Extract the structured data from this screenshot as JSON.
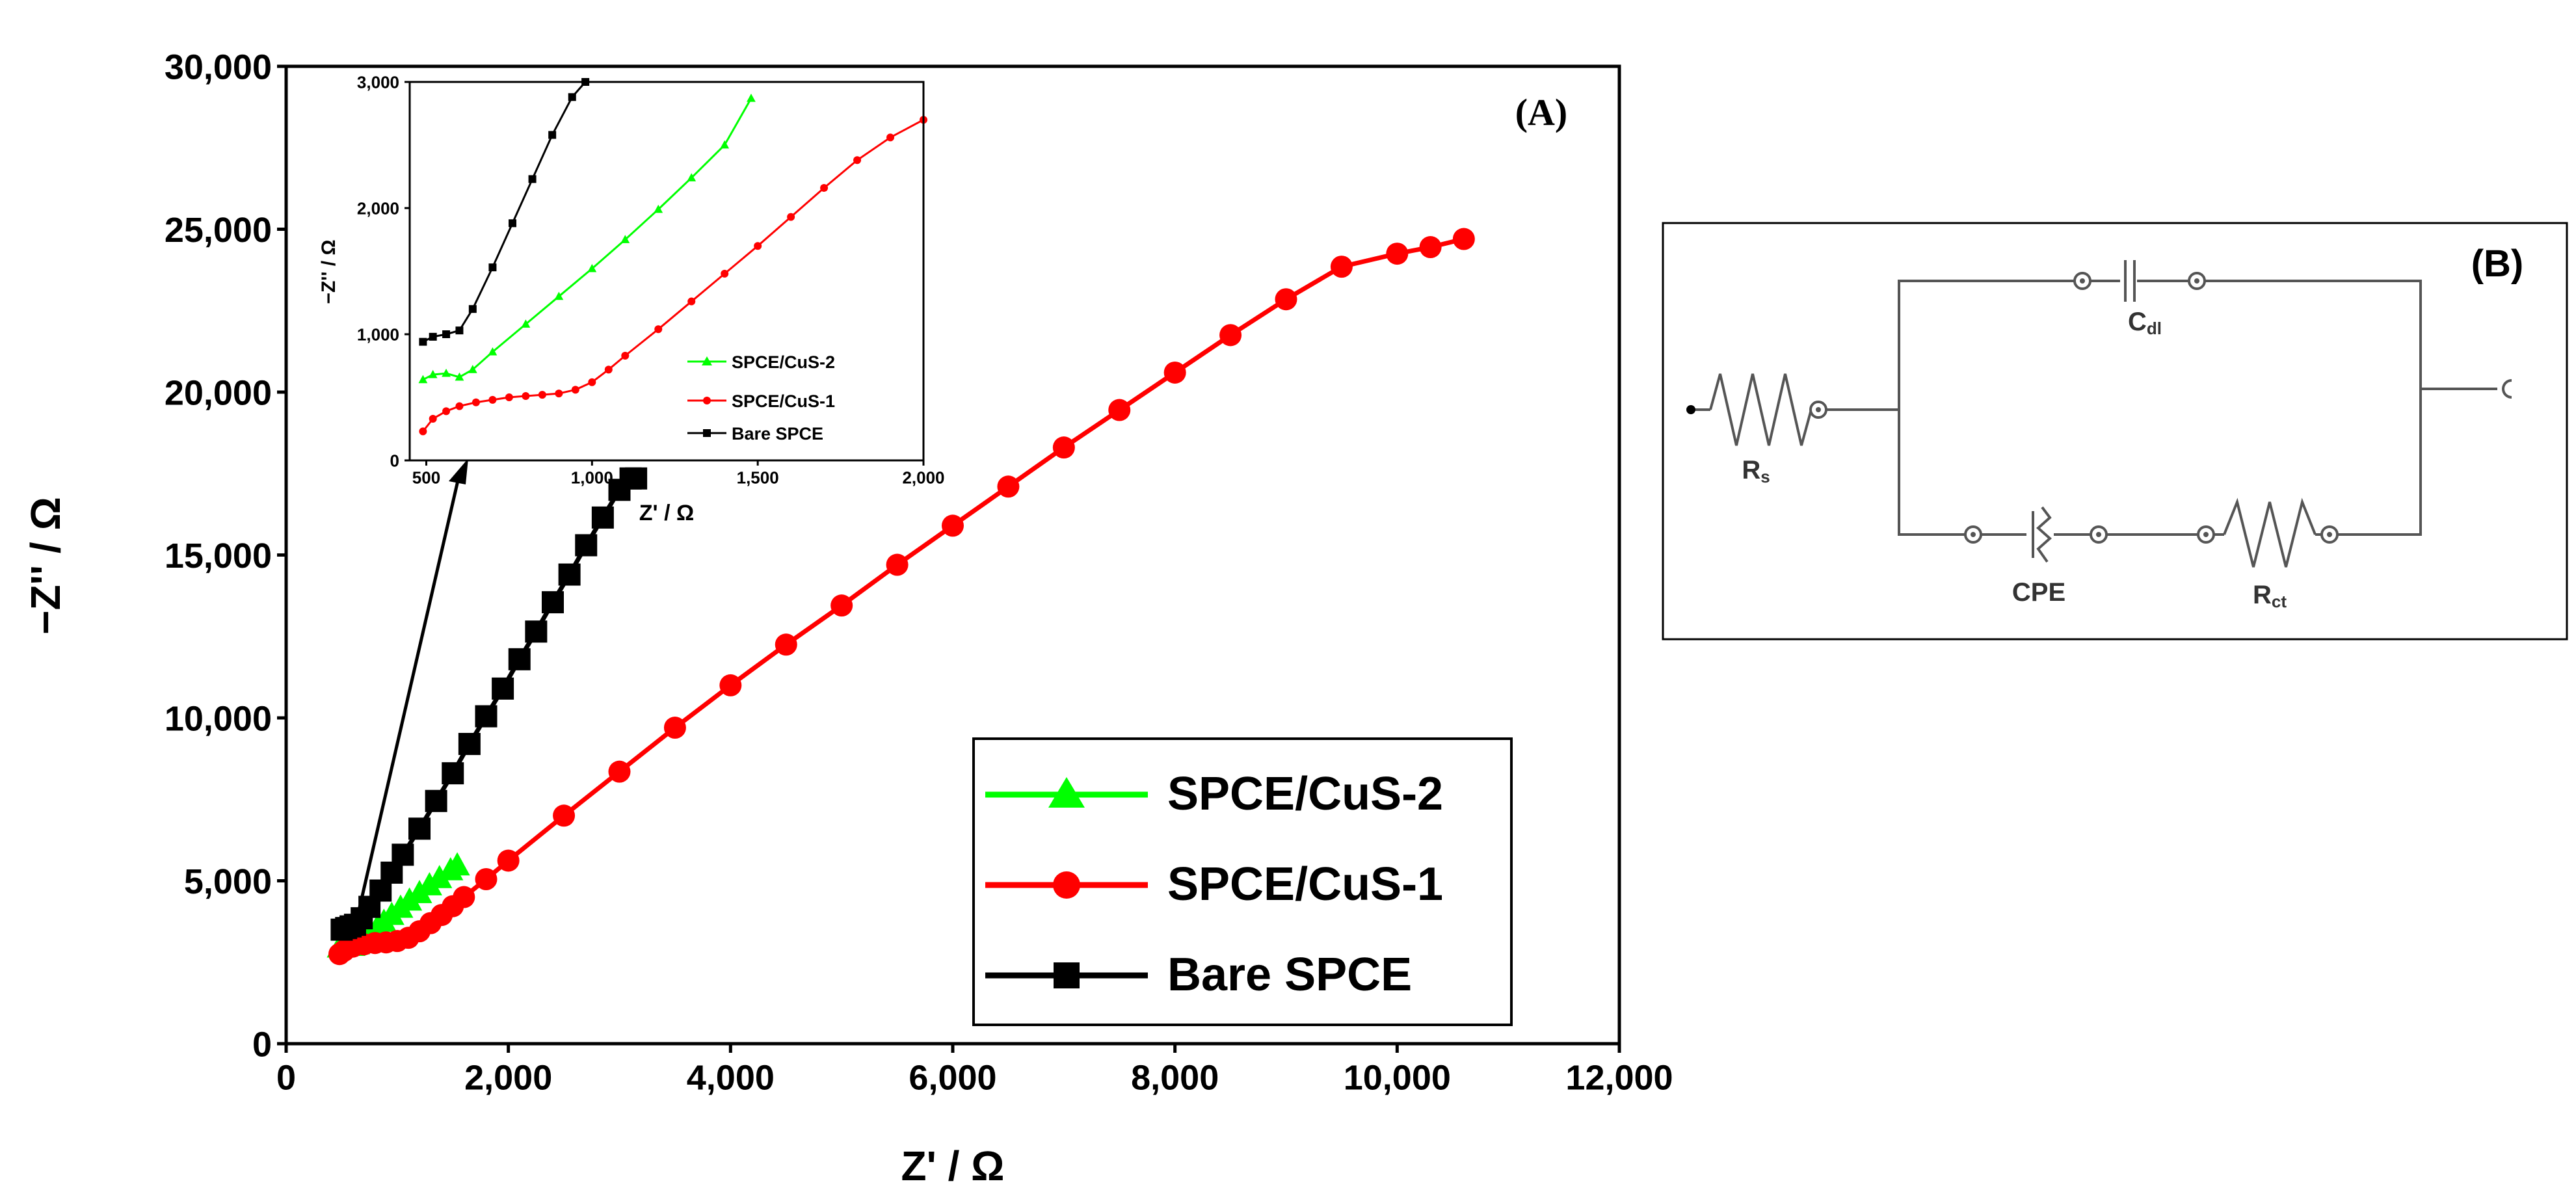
{
  "chart_data": [
    {
      "id": "main",
      "type": "line",
      "panel_label": "(A)",
      "xlabel": "Z' / Ω",
      "ylabel": "−Z'' / Ω",
      "xlim": [
        0,
        12000
      ],
      "ylim": [
        0,
        30000
      ],
      "xticks": [
        "0",
        "2,000",
        "4,000",
        "6,000",
        "8,000",
        "10,000",
        "12,000"
      ],
      "yticks": [
        "0",
        "5,000",
        "10,000",
        "15,000",
        "20,000",
        "25,000",
        "30,000"
      ],
      "legend_position": "bottom-right",
      "series": [
        {
          "name": "SPCE/CuS-2",
          "color": "#00ff00",
          "marker": "triangle",
          "x": [
            480,
            520,
            560,
            600,
            640,
            700,
            760,
            820,
            880,
            950,
            1030,
            1110,
            1200,
            1290,
            1380,
            1480,
            1540
          ],
          "y": [
            2950,
            3000,
            3020,
            3000,
            3050,
            3200,
            3380,
            3560,
            3740,
            3950,
            4170,
            4390,
            4620,
            4860,
            5080,
            5320,
            5470
          ]
        },
        {
          "name": "SPCE/CuS-1",
          "color": "#ff0000",
          "marker": "circle",
          "x": [
            480,
            520,
            600,
            700,
            800,
            900,
            1000,
            1100,
            1200,
            1300,
            1400,
            1500,
            1600,
            1800,
            2000,
            2500,
            3000,
            3500,
            4000,
            4500,
            5000,
            5500,
            6000,
            6500,
            7000,
            7500,
            8000,
            8500,
            9000,
            9500,
            10000,
            10300,
            10600
          ],
          "y": [
            2750,
            2850,
            2980,
            3050,
            3090,
            3110,
            3150,
            3250,
            3450,
            3700,
            3950,
            4220,
            4500,
            5050,
            5620,
            7000,
            8350,
            9700,
            11000,
            12250,
            13450,
            14700,
            15900,
            17100,
            18300,
            19450,
            20600,
            21750,
            22850,
            23850,
            24250,
            24450,
            24700
          ]
        },
        {
          "name": "Bare SPCE",
          "color": "#000000",
          "marker": "square",
          "x": [
            500,
            540,
            580,
            620,
            680,
            750,
            850,
            950,
            1050,
            1200,
            1350,
            1500,
            1650,
            1800,
            1950,
            2100,
            2250,
            2400,
            2550,
            2700,
            2850,
            3000,
            3100,
            3150
          ],
          "y": [
            3500,
            3550,
            3600,
            3650,
            3850,
            4200,
            4700,
            5250,
            5800,
            6600,
            7450,
            8300,
            9200,
            10050,
            10900,
            11800,
            12650,
            13550,
            14400,
            15300,
            16150,
            17000,
            17350,
            17350
          ]
        }
      ]
    },
    {
      "id": "inset",
      "type": "line",
      "xlabel": "Z' / Ω",
      "ylabel": "−Z'' / Ω",
      "xlim": [
        450,
        2000
      ],
      "ylim": [
        0,
        3000
      ],
      "xticks": [
        "500",
        "1,000",
        "1,500",
        "2,000"
      ],
      "yticks": [
        "0",
        "1,000",
        "2,000",
        "3,000"
      ],
      "legend_position": "bottom-right",
      "series": [
        {
          "name": "SPCE/CuS-2",
          "color": "#00ff00",
          "marker": "triangle",
          "x": [
            490,
            520,
            560,
            600,
            640,
            700,
            800,
            900,
            1000,
            1100,
            1200,
            1300,
            1400,
            1480
          ],
          "y": [
            640,
            680,
            690,
            660,
            720,
            860,
            1080,
            1300,
            1520,
            1750,
            1990,
            2240,
            2500,
            2870
          ]
        },
        {
          "name": "SPCE/CuS-1",
          "color": "#ff0000",
          "marker": "circle",
          "x": [
            490,
            520,
            560,
            600,
            650,
            700,
            750,
            800,
            850,
            900,
            950,
            1000,
            1050,
            1100,
            1200,
            1300,
            1400,
            1500,
            1600,
            1700,
            1800,
            1900,
            2000
          ],
          "y": [
            230,
            330,
            390,
            430,
            460,
            480,
            500,
            510,
            520,
            530,
            560,
            620,
            720,
            830,
            1040,
            1260,
            1480,
            1700,
            1930,
            2160,
            2380,
            2560,
            2700
          ]
        },
        {
          "name": "Bare SPCE",
          "color": "#000000",
          "marker": "square",
          "x": [
            490,
            520,
            560,
            600,
            640,
            700,
            760,
            820,
            880,
            940,
            980
          ],
          "y": [
            940,
            980,
            1000,
            1030,
            1200,
            1530,
            1880,
            2230,
            2580,
            2880,
            3000
          ]
        }
      ]
    }
  ],
  "circuit": {
    "panel_label": "(B)",
    "labels": {
      "rs": "Rs",
      "cdl": "Cdl",
      "cpe": "CPE",
      "rct": "Rct"
    }
  }
}
